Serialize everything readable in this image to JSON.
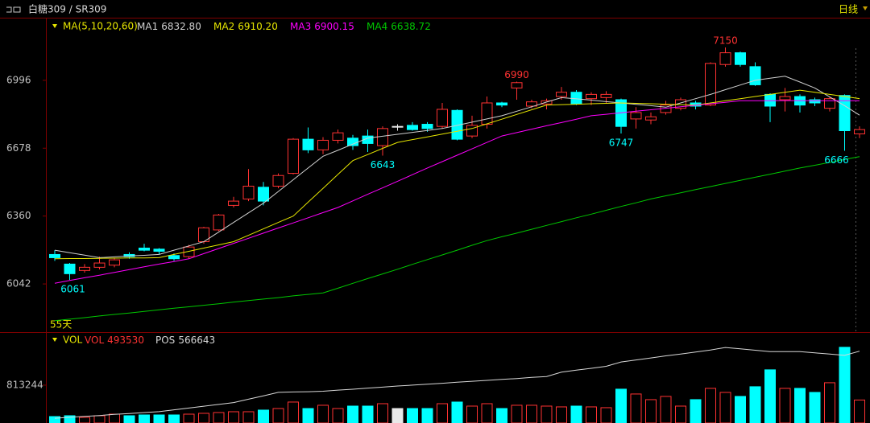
{
  "header": {
    "symbol": "白糖309 / SR309",
    "period": "日线"
  },
  "chart_data": [
    {
      "type": "candlestick",
      "indicator": "MA(5,10,20,60)",
      "days_label": "55天",
      "ylim": [
        5820,
        7278
      ],
      "yticks": [
        6042,
        6360,
        6678,
        6996
      ],
      "up_color": "#ff3232",
      "down_color": "#00ffff",
      "open": [
        6180,
        6135,
        6105,
        6120,
        6130,
        6180,
        6210,
        6205,
        6175,
        6170,
        6240,
        6295,
        6410,
        6440,
        6495,
        6500,
        6560,
        6720,
        6670,
        6715,
        6725,
        6735,
        6690,
        6780,
        6785,
        6790,
        6780,
        6855,
        6735,
        6790,
        6890,
        6960,
        6875,
        6885,
        6920,
        6940,
        6910,
        6915,
        6905,
        6815,
        6810,
        6845,
        6865,
        6890,
        6880,
        7070,
        7125,
        7060,
        6930,
        6905,
        6920,
        6905,
        6865,
        6925,
        6745
      ],
      "high": [
        6200,
        6140,
        6135,
        6170,
        6165,
        6190,
        6230,
        6210,
        6185,
        6225,
        6310,
        6370,
        6450,
        6580,
        6520,
        6560,
        6725,
        6775,
        6730,
        6765,
        6740,
        6765,
        6780,
        6790,
        6800,
        6800,
        6890,
        6860,
        6830,
        6920,
        6895,
        6990,
        6905,
        6910,
        6965,
        6950,
        6940,
        6945,
        6910,
        6870,
        6845,
        6900,
        6915,
        6900,
        7080,
        7150,
        7130,
        7080,
        6935,
        6960,
        6930,
        6915,
        6920,
        6930,
        6780
      ],
      "low": [
        6150,
        6061,
        6095,
        6110,
        6120,
        6160,
        6195,
        6180,
        6150,
        6160,
        6230,
        6290,
        6400,
        6430,
        6410,
        6490,
        6555,
        6655,
        6650,
        6700,
        6670,
        6660,
        6643,
        6760,
        6760,
        6755,
        6770,
        6715,
        6725,
        6770,
        6870,
        6905,
        6865,
        6860,
        6905,
        6880,
        6880,
        6890,
        6747,
        6770,
        6790,
        6835,
        6855,
        6860,
        6875,
        7060,
        7060,
        6970,
        6800,
        6850,
        6845,
        6875,
        6850,
        6666,
        6725
      ],
      "close": [
        6165,
        6090,
        6120,
        6140,
        6155,
        6170,
        6200,
        6195,
        6160,
        6215,
        6305,
        6365,
        6430,
        6500,
        6430,
        6550,
        6720,
        6670,
        6715,
        6750,
        6690,
        6700,
        6770,
        6780,
        6765,
        6770,
        6860,
        6720,
        6785,
        6890,
        6880,
        6985,
        6895,
        6900,
        6940,
        6885,
        6930,
        6930,
        6780,
        6845,
        6825,
        6880,
        6905,
        6875,
        7075,
        7125,
        7070,
        6975,
        6875,
        6920,
        6880,
        6890,
        6910,
        6760,
        6765
      ],
      "series": [
        {
          "name": "MA1",
          "color": "#d0d0d0",
          "legend_value": {
            "value": 6832.8,
            "label": "6832.80"
          },
          "values": [
            6200,
            6188,
            6177,
            6165,
            6169,
            6173,
            6176,
            6180,
            6200,
            6220,
            6240,
            6285,
            6330,
            6375,
            6420,
            6475,
            6530,
            6585,
            6640,
            6668,
            6697,
            6725,
            6734,
            6743,
            6752,
            6761,
            6770,
            6785,
            6800,
            6815,
            6830,
            6851,
            6872,
            6894,
            6915,
            6909,
            6903,
            6896,
            6890,
            6883,
            6877,
            6870,
            6890,
            6910,
            6930,
            6952,
            6974,
            6996,
            7006,
            7015,
            6988,
            6960,
            6918,
            6877,
            6832.8
          ]
        },
        {
          "name": "MA2",
          "color": "#e6e600",
          "legend_value": {
            "value": 6910.2,
            "label": "6910.20"
          },
          "values": [
            6160,
            6161,
            6161,
            6162,
            6163,
            6164,
            6164,
            6165,
            6180,
            6195,
            6210,
            6225,
            6240,
            6270,
            6300,
            6330,
            6360,
            6425,
            6490,
            6555,
            6620,
            6648,
            6677,
            6705,
            6718,
            6731,
            6744,
            6757,
            6770,
            6792,
            6814,
            6836,
            6858,
            6880,
            6882,
            6884,
            6886,
            6888,
            6890,
            6888,
            6886,
            6884,
            6882,
            6880,
            6890,
            6900,
            6910,
            6920,
            6930,
            6940,
            6950,
            6940,
            6930,
            6920,
            6910.2
          ]
        },
        {
          "name": "MA3",
          "color": "#ff00ff",
          "legend_value": {
            "value": 6900.15,
            "label": "6900.15"
          },
          "values": [
            6045,
            6058,
            6071,
            6083,
            6096,
            6109,
            6122,
            6135,
            6147,
            6160,
            6184,
            6208,
            6232,
            6256,
            6280,
            6304,
            6328,
            6352,
            6376,
            6400,
            6431,
            6462,
            6492,
            6523,
            6554,
            6585,
            6615,
            6645,
            6675,
            6705,
            6735,
            6751,
            6767,
            6783,
            6798,
            6814,
            6830,
            6837,
            6844,
            6851,
            6858,
            6865,
            6872,
            6879,
            6886,
            6893,
            6900,
            6900,
            6900,
            6901,
            6901,
            6900,
            6900,
            6900,
            6900.15
          ]
        },
        {
          "name": "MA4",
          "color": "#00c800",
          "legend_value": {
            "value": 6638.72,
            "label": "6638.72"
          },
          "values": [
            5870,
            5877,
            5884,
            5892,
            5899,
            5906,
            5913,
            5921,
            5928,
            5935,
            5942,
            5949,
            5957,
            5964,
            5971,
            5978,
            5986,
            5993,
            6000,
            6022,
            6045,
            6067,
            6089,
            6111,
            6134,
            6156,
            6178,
            6200,
            6223,
            6245,
            6263,
            6280,
            6298,
            6316,
            6334,
            6352,
            6369,
            6387,
            6405,
            6422,
            6440,
            6455,
            6469,
            6484,
            6498,
            6513,
            6527,
            6542,
            6556,
            6571,
            6585,
            6598,
            6611,
            6625,
            6638.72
          ]
        }
      ]
    },
    {
      "type": "bar",
      "indicator": "VOL",
      "ylim": [
        0,
        1900000
      ],
      "yticks": [
        813244
      ],
      "y2lim": [
        250000,
        640000
      ],
      "series": [
        {
          "name": "VOL",
          "color": "#ff3232",
          "values": [
            138000,
            156000,
            121000,
            156000,
            190000,
            156000,
            173000,
            173000,
            173000,
            190000,
            208000,
            225000,
            242000,
            242000,
            277000,
            311000,
            450000,
            311000,
            381000,
            311000,
            363000,
            363000,
            415000,
            311000,
            311000,
            311000,
            415000,
            450000,
            363000,
            415000,
            311000,
            381000,
            381000,
            363000,
            346000,
            363000,
            346000,
            329000,
            727000,
            623000,
            502000,
            571000,
            363000,
            502000,
            744000,
            657000,
            571000,
            779000,
            1142000,
            744000,
            744000,
            657000,
            865000,
            1626000,
            493530
          ]
        },
        {
          "name": "POS",
          "color": "#d8d8d8",
          "axis": "y2",
          "values": [
            271000,
            275000,
            279000,
            283000,
            288000,
            292000,
            296000,
            300000,
            308000,
            316000,
            324000,
            332000,
            340000,
            355000,
            370000,
            385000,
            387000,
            388000,
            390000,
            395000,
            399000,
            404000,
            408000,
            413000,
            417000,
            421000,
            425000,
            430000,
            434000,
            438000,
            442000,
            446000,
            451000,
            455000,
            474000,
            483000,
            491000,
            500000,
            519000,
            528000,
            537000,
            546000,
            554000,
            563000,
            572000,
            583000,
            577000,
            571000,
            565000,
            565000,
            565000,
            559000,
            554000,
            548000,
            566643
          ]
        }
      ]
    }
  ]
}
